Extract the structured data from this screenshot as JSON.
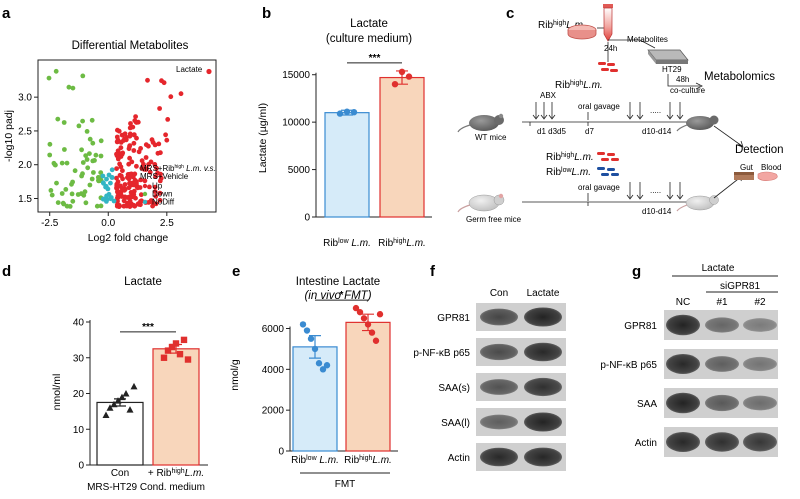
{
  "panels": {
    "a": {
      "letter": "a",
      "chart_data": {
        "type": "scatter",
        "title": "Differential Metabolites",
        "xlabel": "Log2 fold change",
        "ylabel": "-log10 padj",
        "xlim": [
          -3,
          4.6
        ],
        "ylim": [
          1.3,
          3.55
        ],
        "xticks": [
          "-2.5",
          "0.0",
          "2.5"
        ],
        "yticks": [
          "1.5",
          "2.0",
          "2.5",
          "3.0"
        ],
        "annotation": "Lactate",
        "highlight_point": [
          4.3,
          3.38
        ],
        "legend_title_parts": [
          "MRS+Rib",
          "high",
          " L.m. v.s.",
          "MRS+Vehicle"
        ],
        "series": [
          {
            "name": "Up",
            "color": "#e5262c"
          },
          {
            "name": "Down",
            "color": "#6dbb44"
          },
          {
            "name": "NoDiff",
            "color": "#33b5c4"
          }
        ]
      }
    },
    "b": {
      "letter": "b",
      "chart_data": {
        "type": "bar",
        "title": "Lactate",
        "subtitle": "(culture medium)",
        "ylabel": "Lactate (µg/ml)",
        "ylim": [
          0,
          17500
        ],
        "yticks": [
          0,
          5000,
          10000,
          15000
        ],
        "categories": [
          {
            "main": "Rib",
            "sup": "low",
            "rest": " L.m."
          },
          {
            "main": "Rib",
            "sup": "high",
            "rest": "L.m."
          }
        ],
        "values": [
          11000,
          14700
        ],
        "errors": [
          250,
          700
        ],
        "points": [
          [
            10900,
            11100,
            11050
          ],
          [
            14000,
            15300,
            14800
          ]
        ],
        "colors": [
          "#d6ebf9",
          "#f8d6bb"
        ],
        "edge_colors": [
          "#3a8bd1",
          "#e0302e"
        ],
        "significance": "***"
      }
    },
    "c": {
      "letter": "c",
      "rib_high_top": {
        "main": "Rib",
        "sup": "high",
        "rest": "L.m."
      },
      "time_24h": "24h",
      "metabolites": "Metabolites",
      "ht29": "HT29",
      "coculture": [
        "48h",
        "co-culture"
      ],
      "metabolomics": "Metabolomics",
      "rib_high_mid": {
        "main": "Rib",
        "sup": "high",
        "rest": "L.m."
      },
      "abx": "ABX",
      "days": "d1 d3d5",
      "oral_gavage_1": "oral gavage",
      "d7": "d7",
      "d10_14_1": "d10-d14",
      "wt": "WT mice",
      "detection": "Detection",
      "rib_high_lower": {
        "main": "Rib",
        "sup": "high",
        "rest": "L.m."
      },
      "rib_low_lower": {
        "main": "Rib",
        "sup": "low",
        "rest": "L.m."
      },
      "gut": "Gut",
      "blood": "Blood",
      "oral_gavage_2": "oral gavage",
      "d10_14_2": "d10-d14",
      "germ_free": "Germ free mice",
      "dots": "....."
    },
    "d": {
      "letter": "d",
      "chart_data": {
        "type": "bar",
        "title": "Lactate",
        "ylabel": "nmol/ml",
        "ylim": [
          0,
          40
        ],
        "yticks": [
          0,
          10,
          20,
          30,
          40
        ],
        "categories": [
          {
            "main": "Con",
            "sup": "",
            "rest": ""
          },
          {
            "main": "+ Rib",
            "sup": "high",
            "rest": "L.m."
          }
        ],
        "xlabel": "MRS-HT29 Cond. medium",
        "values": [
          17.5,
          32.5
        ],
        "errors": [
          1.0,
          1.2
        ],
        "points": [
          [
            14,
            16,
            17,
            18,
            19,
            20,
            15.5,
            22
          ],
          [
            30,
            32,
            33,
            34,
            31,
            35,
            29.5
          ]
        ],
        "colors": [
          "#ffffff",
          "#f8d6bb"
        ],
        "edge_colors": [
          "#222222",
          "#e0302e"
        ],
        "significance": "***"
      }
    },
    "e": {
      "letter": "e",
      "chart_data": {
        "type": "bar",
        "title": "Intestine Lactate",
        "subtitle": "(in vivo FMT)",
        "ylabel": "nmol/g",
        "ylim": [
          0,
          7200
        ],
        "yticks": [
          0,
          2000,
          4000,
          6000
        ],
        "categories": [
          {
            "main": "Rib",
            "sup": "low",
            "rest": " L.m."
          },
          {
            "main": "Rib",
            "sup": "high",
            "rest": "L.m."
          }
        ],
        "xlabel": "FMT",
        "values": [
          5100,
          6300
        ],
        "errors": [
          550,
          400
        ],
        "points": [
          [
            6200,
            5900,
            5500,
            5000,
            4300,
            4000,
            4200
          ],
          [
            7000,
            6800,
            6500,
            6200,
            5800,
            5400,
            6700
          ]
        ],
        "colors": [
          "#d6ebf9",
          "#f8d6bb"
        ],
        "edge_colors": [
          "#3a8bd1",
          "#e0302e"
        ],
        "significance": "*"
      }
    },
    "f": {
      "letter": "f",
      "columns": [
        "Con",
        "Lactate"
      ],
      "rows": [
        "GPR81",
        "p-NF-κB p65",
        "SAA(s)",
        "SAA(l)",
        "Actin"
      ]
    },
    "g": {
      "letter": "g",
      "treatment": "Lactate",
      "sirna": "siGPR81",
      "columns": [
        "NC",
        "#1",
        "#2"
      ],
      "rows": [
        "GPR81",
        "p-NF-κB p65",
        "SAA",
        "Actin"
      ]
    }
  }
}
